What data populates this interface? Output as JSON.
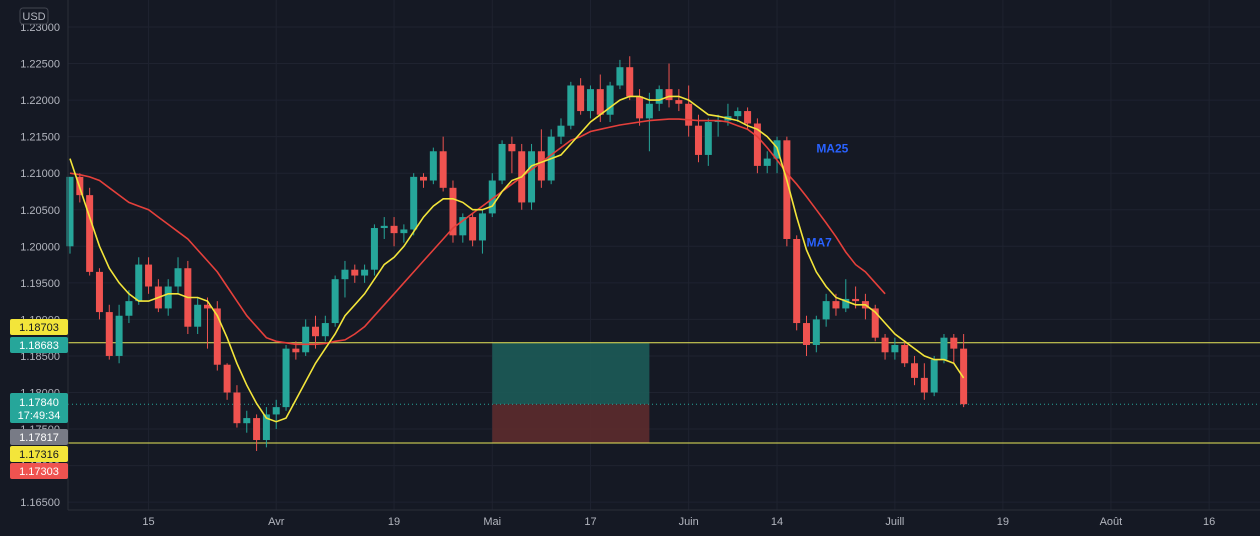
{
  "currency_label": "USD",
  "colors": {
    "background": "#151924",
    "grid": "#1f2330",
    "up": "#26a69a",
    "down": "#ef5350",
    "ma7": "#f3e53a",
    "ma25": "#e5403b",
    "ma_label": "#2962ff",
    "hline": "#e8e85a",
    "profit_zone": "#1c5b58",
    "loss_zone": "#5c2b2e"
  },
  "chart_data": {
    "type": "candlestick",
    "y_ticks": [
      "1.23000",
      "1.22500",
      "1.22000",
      "1.21500",
      "1.21000",
      "1.20500",
      "1.20000",
      "1.19500",
      "1.19000",
      "1.18500",
      "1.18000",
      "1.17500",
      "1.17000",
      "1.16500"
    ],
    "y_range": [
      1.165,
      1.232
    ],
    "x_ticks": [
      {
        "label": "15",
        "index": 8
      },
      {
        "label": "Avr",
        "index": 21
      },
      {
        "label": "19",
        "index": 33
      },
      {
        "label": "Mai",
        "index": 43
      },
      {
        "label": "17",
        "index": 53
      },
      {
        "label": "Juin",
        "index": 63
      },
      {
        "label": "14",
        "index": 72
      },
      {
        "label": "Juill",
        "index": 84
      },
      {
        "label": "19",
        "index": 95
      },
      {
        "label": "Août",
        "index": 106
      },
      {
        "label": "16",
        "index": 116
      }
    ],
    "candles": [
      [
        1.2,
        1.2095,
        1.199,
        1.2095
      ],
      [
        1.2095,
        1.21,
        1.206,
        1.207
      ],
      [
        1.207,
        1.208,
        1.196,
        1.1965
      ],
      [
        1.1965,
        1.197,
        1.19,
        1.191
      ],
      [
        1.191,
        1.192,
        1.1845,
        1.185
      ],
      [
        1.185,
        1.192,
        1.184,
        1.1905
      ],
      [
        1.1905,
        1.194,
        1.1895,
        1.1925
      ],
      [
        1.1925,
        1.1985,
        1.192,
        1.1975
      ],
      [
        1.1975,
        1.1985,
        1.1935,
        1.1945
      ],
      [
        1.1945,
        1.1955,
        1.191,
        1.1915
      ],
      [
        1.1915,
        1.1955,
        1.1905,
        1.1945
      ],
      [
        1.1945,
        1.1985,
        1.1935,
        1.197
      ],
      [
        1.197,
        1.198,
        1.188,
        1.189
      ],
      [
        1.189,
        1.193,
        1.188,
        1.192
      ],
      [
        1.192,
        1.193,
        1.186,
        1.1915
      ],
      [
        1.1915,
        1.1925,
        1.183,
        1.1838
      ],
      [
        1.1838,
        1.184,
        1.179,
        1.18
      ],
      [
        1.18,
        1.181,
        1.1752,
        1.1758
      ],
      [
        1.1758,
        1.1775,
        1.1745,
        1.1765
      ],
      [
        1.1765,
        1.177,
        1.172,
        1.1735
      ],
      [
        1.1735,
        1.178,
        1.1725,
        1.177
      ],
      [
        1.177,
        1.179,
        1.175,
        1.178
      ],
      [
        1.178,
        1.1865,
        1.1775,
        1.186
      ],
      [
        1.186,
        1.187,
        1.1845,
        1.1855
      ],
      [
        1.1855,
        1.19,
        1.185,
        1.189
      ],
      [
        1.189,
        1.1905,
        1.186,
        1.1877
      ],
      [
        1.1877,
        1.1905,
        1.187,
        1.1895
      ],
      [
        1.1895,
        1.196,
        1.189,
        1.1955
      ],
      [
        1.1955,
        1.198,
        1.193,
        1.1968
      ],
      [
        1.1968,
        1.1975,
        1.195,
        1.196
      ],
      [
        1.196,
        1.1975,
        1.195,
        1.1968
      ],
      [
        1.1968,
        1.203,
        1.196,
        1.2025
      ],
      [
        1.2025,
        1.204,
        1.201,
        1.2028
      ],
      [
        1.2028,
        1.204,
        1.2,
        1.2018
      ],
      [
        1.2018,
        1.203,
        1.2005,
        1.2023
      ],
      [
        1.2023,
        1.21,
        1.2015,
        1.2095
      ],
      [
        1.2095,
        1.21,
        1.208,
        1.209
      ],
      [
        1.209,
        1.2135,
        1.2085,
        1.213
      ],
      [
        1.213,
        1.215,
        1.2075,
        1.208
      ],
      [
        1.208,
        1.209,
        1.2005,
        1.2015
      ],
      [
        1.2015,
        1.2045,
        1.2005,
        1.204
      ],
      [
        1.204,
        1.2045,
        1.2,
        1.2008
      ],
      [
        1.2008,
        1.205,
        1.199,
        1.2045
      ],
      [
        1.2045,
        1.21,
        1.204,
        1.209
      ],
      [
        1.209,
        1.2145,
        1.2085,
        1.214
      ],
      [
        1.214,
        1.215,
        1.21,
        1.213
      ],
      [
        1.213,
        1.214,
        1.205,
        1.206
      ],
      [
        1.206,
        1.214,
        1.205,
        1.213
      ],
      [
        1.213,
        1.216,
        1.208,
        1.209
      ],
      [
        1.209,
        1.216,
        1.2085,
        1.215
      ],
      [
        1.215,
        1.2175,
        1.214,
        1.2165
      ],
      [
        1.2165,
        1.2225,
        1.216,
        1.222
      ],
      [
        1.222,
        1.223,
        1.218,
        1.2185
      ],
      [
        1.2185,
        1.222,
        1.2175,
        1.2215
      ],
      [
        1.2215,
        1.2235,
        1.217,
        1.218
      ],
      [
        1.218,
        1.2225,
        1.217,
        1.222
      ],
      [
        1.222,
        1.2255,
        1.2215,
        1.2245
      ],
      [
        1.2245,
        1.226,
        1.22,
        1.2205
      ],
      [
        1.2205,
        1.2215,
        1.2165,
        1.2175
      ],
      [
        1.2175,
        1.221,
        1.213,
        1.2195
      ],
      [
        1.2195,
        1.222,
        1.2185,
        1.2215
      ],
      [
        1.2215,
        1.225,
        1.219,
        1.22
      ],
      [
        1.22,
        1.2215,
        1.2185,
        1.2195
      ],
      [
        1.2195,
        1.222,
        1.215,
        1.2165
      ],
      [
        1.2165,
        1.218,
        1.2115,
        1.2125
      ],
      [
        1.2125,
        1.2175,
        1.211,
        1.217
      ],
      [
        1.217,
        1.218,
        1.215,
        1.2172
      ],
      [
        1.2172,
        1.2195,
        1.2165,
        1.2178
      ],
      [
        1.2178,
        1.219,
        1.217,
        1.2185
      ],
      [
        1.2185,
        1.219,
        1.216,
        1.2168
      ],
      [
        1.2168,
        1.2175,
        1.21,
        1.211
      ],
      [
        1.211,
        1.213,
        1.21,
        1.212
      ],
      [
        1.212,
        1.215,
        1.21,
        1.2145
      ],
      [
        1.2145,
        1.215,
        1.2,
        1.201
      ],
      [
        1.201,
        1.2015,
        1.1885,
        1.1895
      ],
      [
        1.1895,
        1.1905,
        1.185,
        1.1865
      ],
      [
        1.1865,
        1.1905,
        1.1855,
        1.19
      ],
      [
        1.19,
        1.1935,
        1.189,
        1.1925
      ],
      [
        1.1925,
        1.1935,
        1.1905,
        1.1915
      ],
      [
        1.1915,
        1.1955,
        1.191,
        1.1928
      ],
      [
        1.1928,
        1.1945,
        1.1915,
        1.1925
      ],
      [
        1.1925,
        1.1935,
        1.19,
        1.1915
      ],
      [
        1.1915,
        1.192,
        1.187,
        1.1875
      ],
      [
        1.1875,
        1.188,
        1.1845,
        1.1855
      ],
      [
        1.1855,
        1.1875,
        1.1845,
        1.1865
      ],
      [
        1.1865,
        1.187,
        1.1835,
        1.184
      ],
      [
        1.184,
        1.185,
        1.181,
        1.182
      ],
      [
        1.182,
        1.184,
        1.179,
        1.18
      ],
      [
        1.18,
        1.185,
        1.1795,
        1.1845
      ],
      [
        1.1845,
        1.188,
        1.184,
        1.1875
      ],
      [
        1.1875,
        1.188,
        1.184,
        1.186
      ],
      [
        1.186,
        1.188,
        1.178,
        1.1784
      ]
    ],
    "ma7": [
      1.212,
      1.208,
      1.204,
      1.2,
      1.197,
      1.195,
      1.1935,
      1.1925,
      1.1925,
      1.193,
      1.1935,
      1.1935,
      1.193,
      1.193,
      1.1925,
      1.1905,
      1.1875,
      1.184,
      1.181,
      1.1785,
      1.1765,
      1.176,
      1.1765,
      1.179,
      1.1815,
      1.184,
      1.186,
      1.188,
      1.1905,
      1.192,
      1.1935,
      1.1955,
      1.1975,
      1.1985,
      1.2,
      1.202,
      1.204,
      1.2055,
      1.2065,
      1.2065,
      1.206,
      1.205,
      1.205,
      1.2055,
      1.2075,
      1.209,
      1.2095,
      1.211,
      1.2115,
      1.212,
      1.2125,
      1.214,
      1.2155,
      1.217,
      1.218,
      1.219,
      1.22,
      1.2205,
      1.2205,
      1.22,
      1.22,
      1.2205,
      1.2205,
      1.22,
      1.219,
      1.218,
      1.2178,
      1.2175,
      1.2172,
      1.2165,
      1.216,
      1.215,
      1.2135,
      1.209,
      1.204,
      1.1995,
      1.1965,
      1.1945,
      1.193,
      1.1925,
      1.192,
      1.192,
      1.191,
      1.1895,
      1.188,
      1.187,
      1.186,
      1.185,
      1.1845,
      1.1845,
      1.184,
      1.182
    ],
    "ma25": [
      1.21,
      1.2098,
      1.2095,
      1.209,
      1.208,
      1.207,
      1.206,
      1.2055,
      1.205,
      1.204,
      1.203,
      1.202,
      1.201,
      1.1995,
      1.198,
      1.1965,
      1.1945,
      1.1925,
      1.1905,
      1.189,
      1.1875,
      1.187,
      1.1868,
      1.1866,
      1.1866,
      1.1866,
      1.1867,
      1.187,
      1.1872,
      1.188,
      1.189,
      1.1905,
      1.192,
      1.1935,
      1.195,
      1.1965,
      1.198,
      1.1995,
      1.201,
      1.2025,
      1.2035,
      1.2045,
      1.2055,
      1.2065,
      1.2075,
      1.2085,
      1.2095,
      1.2105,
      1.2115,
      1.2125,
      1.2135,
      1.2145,
      1.215,
      1.2157,
      1.216,
      1.2163,
      1.2166,
      1.2168,
      1.217,
      1.2172,
      1.2173,
      1.2174,
      1.2174,
      1.2173,
      1.2172,
      1.2172,
      1.2172,
      1.217,
      1.2165,
      1.216,
      1.215,
      1.2135,
      1.2118,
      1.21,
      1.2085,
      1.2068,
      1.205,
      1.2032,
      1.2013,
      1.1992,
      1.1975,
      1.1965,
      1.195,
      1.1935
    ],
    "ma_labels": [
      {
        "text": "MA25",
        "index": 76,
        "price": 1.2128
      },
      {
        "text": "MA7",
        "index": 75,
        "price": 1.2
      }
    ],
    "horizontal_lines": [
      1.1868,
      1.1731
    ],
    "position": {
      "start_index": 43,
      "end_index": 59,
      "target": 1.1868,
      "entry": 1.1784,
      "stop": 1.1731
    },
    "price_tags": [
      {
        "price": 1.18703,
        "label": "1.18703",
        "style": "yellow"
      },
      {
        "price": 1.18683,
        "label": "1.18683",
        "style": "teal"
      },
      {
        "price": 1.1784,
        "label": "1.17840",
        "time": "17:49:34",
        "style": "teal"
      },
      {
        "price": 1.17817,
        "label": "1.17817",
        "style": "gray"
      },
      {
        "price": 1.17316,
        "label": "1.17316",
        "style": "yellow"
      },
      {
        "price": 1.17303,
        "label": "1.17303",
        "style": "red"
      }
    ],
    "current_price": 1.1784
  }
}
